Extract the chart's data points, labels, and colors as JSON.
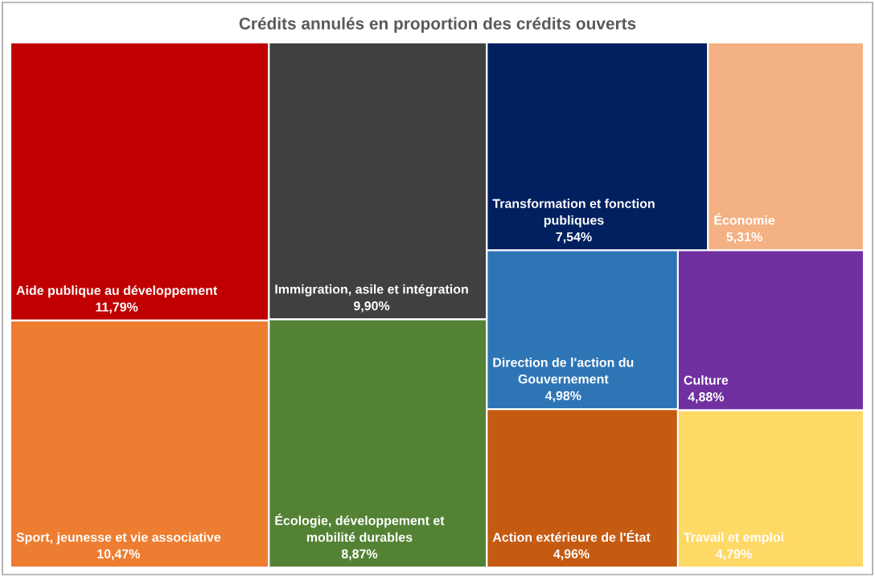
{
  "chart_data": {
    "type": "other",
    "title": "Crédits annulés en proportion des crédits ouverts",
    "categories": [
      "Aide publique au développement",
      "Sport, jeunesse et vie associative",
      "Immigration, asile et intégration",
      "Écologie, développement et mobilité durables",
      "Transformation et fonction publiques",
      "Économie",
      "Direction de l'action du Gouvernement",
      "Action extérieure de l'État",
      "Culture",
      "Travail et emploi"
    ],
    "values": [
      11.79,
      10.47,
      9.9,
      8.87,
      7.54,
      5.31,
      4.98,
      4.96,
      4.88,
      4.79
    ],
    "value_labels": [
      "11,79%",
      "10,47%",
      "9,90%",
      "8,87%",
      "7,54%",
      "5,31%",
      "4,98%",
      "4,96%",
      "4,88%",
      "4,79%"
    ],
    "colors": [
      "#c00000",
      "#ed7d31",
      "#404040",
      "#548235",
      "#002060",
      "#f4b183",
      "#2e75b6",
      "#c55a11",
      "#7030a0",
      "#ffd966"
    ]
  }
}
